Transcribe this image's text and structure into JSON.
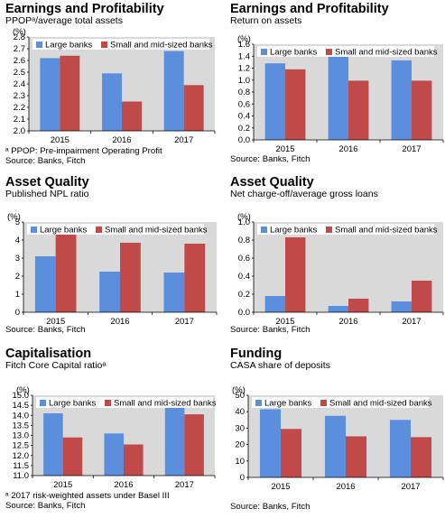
{
  "colors": {
    "large": "#5b8fdd",
    "small": "#c0494a",
    "plot_bg": "#d9d9d9",
    "legend_bg": "#ffffff"
  },
  "legend": {
    "large": "Large banks",
    "small": "Small and mid-sized banks"
  },
  "panels": [
    {
      "title": "Earnings and Profitability",
      "subtitle": "PPOPᵃ/average total assets",
      "notes": [
        "ᵃ PPOP: Pre-impairment Operating Profit",
        "Source: Banks, Fitch"
      ],
      "chart_data": {
        "type": "bar",
        "unit": "(%)",
        "categories": [
          "2015",
          "2016",
          "2017"
        ],
        "ylim": [
          2.0,
          2.8
        ],
        "ticks": [
          "2.0",
          "2.1",
          "2.2",
          "2.3",
          "2.4",
          "2.5",
          "2.6",
          "2.7",
          "2.8"
        ],
        "series": [
          {
            "name": "Large banks",
            "values": [
              2.62,
              2.49,
              2.68
            ]
          },
          {
            "name": "Small and mid-sized banks",
            "values": [
              2.64,
              2.25,
              2.39
            ]
          }
        ]
      }
    },
    {
      "title": "Earnings and Profitability",
      "subtitle": "Return on assets",
      "notes": [
        "Source: Banks, Fitch"
      ],
      "chart_data": {
        "type": "bar",
        "unit": "(%)",
        "categories": [
          "2015",
          "2016",
          "2017"
        ],
        "ylim": [
          0.0,
          1.6
        ],
        "ticks": [
          "0.0",
          "0.2",
          "0.4",
          "0.6",
          "0.8",
          "1.0",
          "1.2",
          "1.4",
          "1.6"
        ],
        "series": [
          {
            "name": "Large banks",
            "values": [
              1.28,
              1.4,
              1.33
            ]
          },
          {
            "name": "Small and mid-sized banks",
            "values": [
              1.18,
              0.99,
              0.99
            ]
          }
        ]
      }
    },
    {
      "title": "Asset Quality",
      "subtitle": "Published NPL ratio",
      "notes": [
        "Source: Banks, Fitch"
      ],
      "chart_data": {
        "type": "bar",
        "unit": "(%)",
        "categories": [
          "2015",
          "2016",
          "2017"
        ],
        "ylim": [
          0,
          5
        ],
        "ticks": [
          "0",
          "1",
          "2",
          "3",
          "4",
          "5"
        ],
        "series": [
          {
            "name": "Large banks",
            "values": [
              3.1,
              2.25,
              2.2
            ]
          },
          {
            "name": "Small and mid-sized banks",
            "values": [
              4.6,
              3.85,
              3.8
            ]
          }
        ]
      }
    },
    {
      "title": "Asset Quality",
      "subtitle": "Net charge-off/average gross loans",
      "notes": [
        "Source: Banks, Fitch"
      ],
      "chart_data": {
        "type": "bar",
        "unit": "(%)",
        "categories": [
          "2015",
          "2016",
          "2017"
        ],
        "ylim": [
          0.0,
          1.0
        ],
        "ticks": [
          "0.0",
          "0.2",
          "0.4",
          "0.6",
          "0.8",
          "1.0"
        ],
        "series": [
          {
            "name": "Large banks",
            "values": [
              0.18,
              0.07,
              0.12
            ]
          },
          {
            "name": "Small and mid-sized banks",
            "values": [
              0.83,
              0.15,
              0.35
            ]
          }
        ]
      }
    },
    {
      "title": "Capitalisation",
      "subtitle": "Fitch Core Capital ratioᵃ",
      "notes": [
        "ᵃ 2017 risk-weighted assets under Basel III",
        "Source: Banks, Fitch"
      ],
      "chart_data": {
        "type": "bar",
        "unit": "(%)",
        "categories": [
          "2015",
          "2016",
          "2017"
        ],
        "ylim": [
          11.0,
          15.0
        ],
        "ticks": [
          "11.0",
          "11.5",
          "12.0",
          "12.5",
          "13.0",
          "13.5",
          "14.0",
          "14.5",
          "15.0"
        ],
        "series": [
          {
            "name": "Large banks",
            "values": [
              14.1,
              13.1,
              14.5
            ]
          },
          {
            "name": "Small and mid-sized banks",
            "values": [
              12.9,
              12.55,
              14.05
            ]
          }
        ]
      }
    },
    {
      "title": "Funding",
      "subtitle": "CASA share of deposits",
      "notes": [
        "Source: Banks, Fitch"
      ],
      "chart_data": {
        "type": "bar",
        "unit": "(%)",
        "categories": [
          "2015",
          "2016",
          "2017"
        ],
        "ylim": [
          0,
          50
        ],
        "ticks": [
          "0",
          "10",
          "20",
          "30",
          "40",
          "50"
        ],
        "series": [
          {
            "name": "Large banks",
            "values": [
              41.5,
              37.5,
              35
            ]
          },
          {
            "name": "Small and mid-sized banks",
            "values": [
              29.5,
              25,
              24.5
            ]
          }
        ]
      }
    }
  ]
}
